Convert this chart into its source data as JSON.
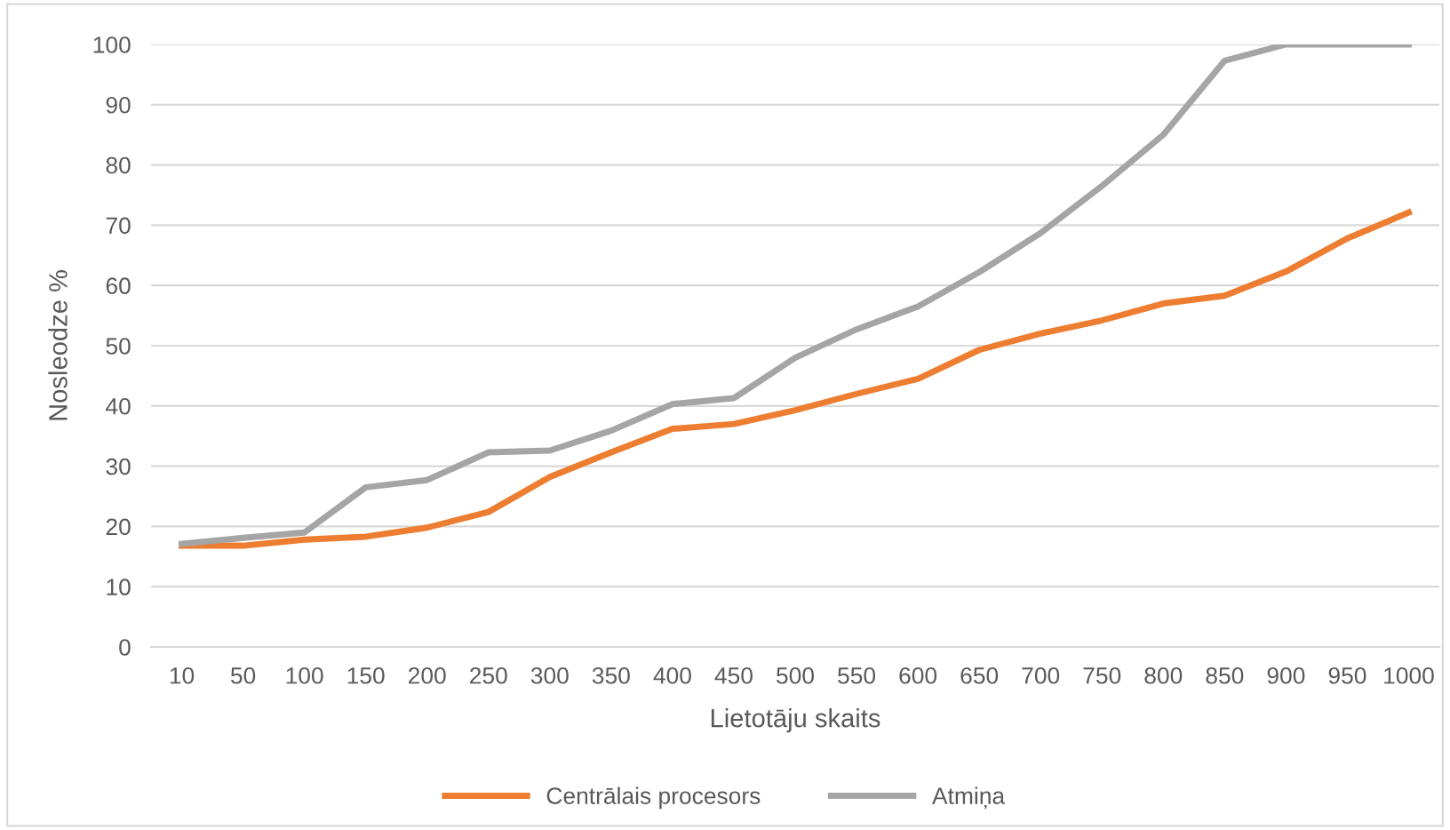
{
  "chart_data": {
    "type": "line",
    "xlabel": "Lietotāju skaits",
    "ylabel": "Nosleodze %",
    "categories": [
      "10",
      "50",
      "100",
      "150",
      "200",
      "250",
      "300",
      "350",
      "400",
      "450",
      "500",
      "550",
      "600",
      "650",
      "700",
      "750",
      "800",
      "850",
      "900",
      "950",
      "1000"
    ],
    "series": [
      {
        "name": "Centrālais procesors",
        "color": "#ed7d31",
        "values": [
          16.8,
          16.8,
          17.8,
          18.3,
          19.8,
          22.4,
          28.2,
          32.3,
          36.2,
          37.0,
          39.3,
          42.0,
          44.5,
          49.3,
          52.0,
          54.2,
          57.0,
          58.3,
          62.3,
          67.8,
          72.1
        ]
      },
      {
        "name": "Atmiņa",
        "color": "#a5a5a5",
        "values": [
          17.1,
          18.1,
          19.0,
          26.5,
          27.7,
          32.3,
          32.6,
          35.9,
          40.3,
          41.3,
          48.0,
          52.7,
          56.5,
          62.2,
          68.7,
          76.5,
          85.0,
          97.3,
          100,
          100,
          100
        ]
      }
    ],
    "ylim": [
      0,
      100
    ],
    "yticks": [
      0,
      10,
      20,
      30,
      40,
      50,
      60,
      70,
      80,
      90,
      100
    ],
    "grid": "y",
    "legend": "bottom",
    "marker": "none",
    "line_style": "solid"
  }
}
